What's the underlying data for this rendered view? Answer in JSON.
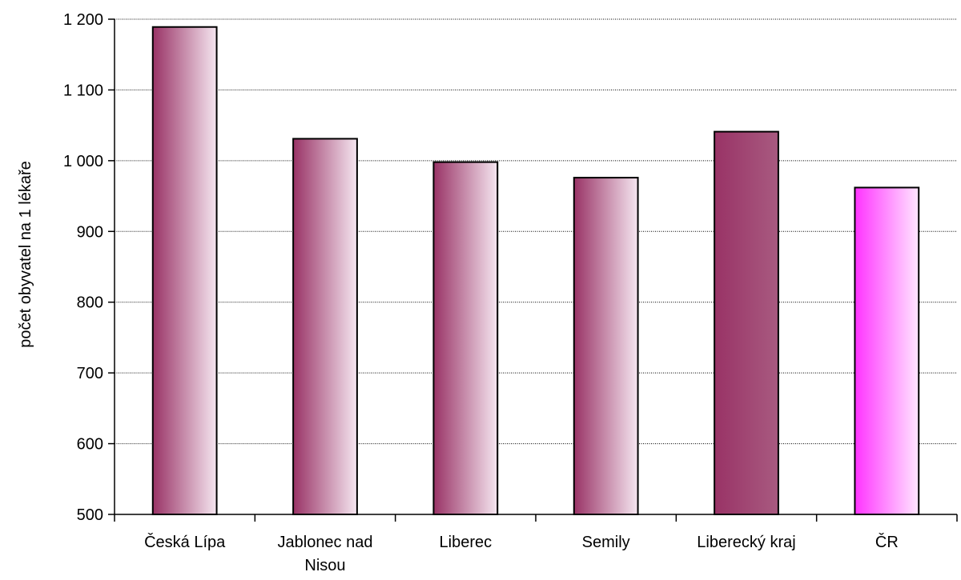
{
  "chart_data": {
    "type": "bar",
    "title": "",
    "xlabel": "",
    "ylabel": "počet obyvatel na 1 lékaře",
    "ylim": [
      500,
      1200
    ],
    "yticks": [
      500,
      600,
      700,
      800,
      900,
      1000,
      1100,
      1200
    ],
    "ytick_labels": [
      "500",
      "600",
      "700",
      "800",
      "900",
      "1 000",
      "1 100",
      "1 200"
    ],
    "grid": "horizontal dotted",
    "legend": "none",
    "categories": [
      [
        "Česká Lípa"
      ],
      [
        "Jablonec nad",
        "Nisou"
      ],
      [
        "Liberec"
      ],
      [
        "Semily"
      ],
      [
        "Liberecký kraj"
      ],
      [
        "ČR"
      ]
    ],
    "values": [
      1189,
      1031,
      998,
      976,
      1041,
      962
    ],
    "bar_colors": [
      {
        "style": "gradient",
        "from": "#993366",
        "to": "#f5e6f0"
      },
      {
        "style": "gradient",
        "from": "#993366",
        "to": "#f5e6f0"
      },
      {
        "style": "gradient",
        "from": "#993366",
        "to": "#f5e6f0"
      },
      {
        "style": "gradient",
        "from": "#993366",
        "to": "#f5e6f0"
      },
      {
        "style": "gradient",
        "from": "#993366",
        "to": "#a85a80"
      },
      {
        "style": "gradient",
        "from": "#ff33ff",
        "to": "#ffe6ff"
      }
    ]
  }
}
